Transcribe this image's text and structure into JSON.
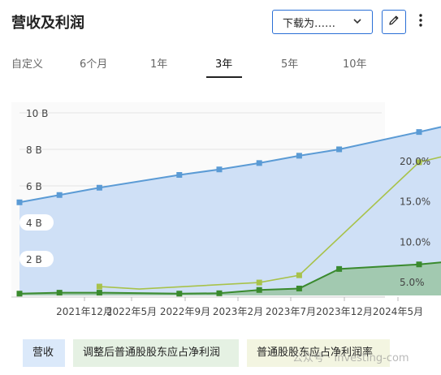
{
  "header": {
    "title": "营收及利润",
    "download_label": "下载为……",
    "icons": {
      "edit": "pencil-icon",
      "more": "more-vertical-icon",
      "dropdown": "chevron-down-icon"
    }
  },
  "tabs": [
    "自定义",
    "6个月",
    "1年",
    "3年",
    "5年",
    "10年"
  ],
  "active_tab": "3年",
  "legend": [
    {
      "label": "营收",
      "color": "#dbe9fa"
    },
    {
      "label": "调整后普通股股东应占净利润",
      "color": "#e5f1e3"
    },
    {
      "label": "普通股股东应占净利润率",
      "color": "#f3f5e1"
    }
  ],
  "watermark": "公众号 · Investing-com",
  "chart_data": {
    "type": "line",
    "x_ticks": [
      "2021年12月",
      "2022年5月",
      "2022年9月",
      "2023年2月",
      "2023年7月",
      "2023年12月",
      "2024年5月"
    ],
    "left_axis": {
      "ticks": [
        "2 B",
        "4 B",
        "6 B",
        "8 B",
        "10 B"
      ],
      "unit": "B",
      "range": [
        0,
        10
      ]
    },
    "right_axis": {
      "ticks": [
        "5.0%",
        "10.0%",
        "15.0%",
        "20.0%"
      ],
      "unit": "%",
      "range": [
        3.5,
        22
      ]
    },
    "series": [
      {
        "name": "营收",
        "axis": "left",
        "style": "area",
        "color": "#5b9bd5",
        "fill": "#cfe0f6",
        "x": [
          "2021年6月",
          "2021年9月",
          "2021年12月",
          "2022年6月",
          "2022年9月",
          "2022年12月",
          "2023年3月",
          "2023年6月",
          "2023年12月",
          "2024年3月"
        ],
        "values": [
          5.1,
          5.5,
          5.9,
          6.6,
          6.9,
          7.25,
          7.65,
          8.0,
          8.95,
          9.45
        ]
      },
      {
        "name": "调整后普通股股东应占净利润",
        "axis": "left",
        "style": "area",
        "color": "#3a8a2e",
        "fill": "#9cc7a8",
        "x": [
          "2021年6月",
          "2021年9月",
          "2021年12月",
          "2022年6月",
          "2022年9月",
          "2022年12月",
          "2023年3月",
          "2023年6月",
          "2023年12月",
          "2024年3月"
        ],
        "values": [
          0.1,
          0.15,
          0.15,
          0.1,
          0.12,
          0.3,
          0.38,
          1.45,
          1.7,
          1.9
        ]
      },
      {
        "name": "普通股股东应占净利润率",
        "axis": "right",
        "style": "line",
        "color": "#a8c24a",
        "x": [
          "2021年12月",
          "2022年3月",
          "2022年12月",
          "2023年3月",
          "2023年12月",
          "2024年3月"
        ],
        "values": [
          4.4,
          4.1,
          4.9,
          5.8,
          19.8,
          21.0
        ]
      }
    ]
  }
}
